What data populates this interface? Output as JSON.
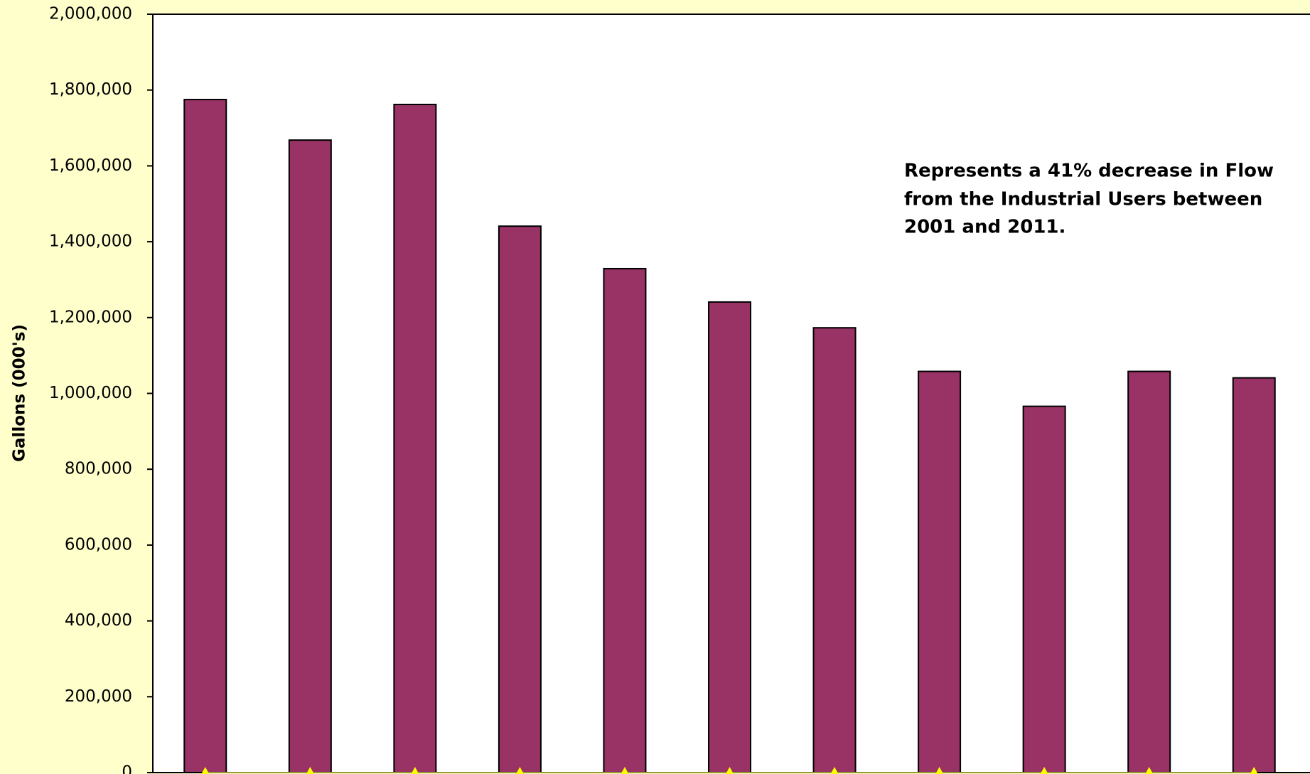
{
  "chart_data": {
    "type": "bar",
    "ylabel": "Gallons (000's)",
    "annotation": [
      "Represents a 41% decrease in Flow",
      "from the Industrial Users between",
      "2001 and 2011."
    ],
    "categories": [
      null,
      null,
      null,
      null,
      null,
      null,
      null,
      null,
      null,
      null,
      null
    ],
    "series": [
      {
        "color": "#993366",
        "values": [
          1775000,
          1668000,
          1762000,
          1441000,
          1329000,
          1241000,
          1173000,
          1058000,
          966000,
          1058000,
          1041000
        ]
      },
      {
        "color": "#ffff00",
        "values": [
          0,
          0,
          0,
          0,
          0,
          0,
          0,
          0,
          0,
          0,
          0
        ]
      }
    ],
    "ylim": [
      0,
      2000000
    ],
    "yticks": [
      0,
      {
        "value": 200000,
        "label": "200,000"
      },
      {
        "value": 400000,
        "label": "400,000"
      },
      {
        "value": 600000,
        "label": "600,000"
      },
      {
        "value": 800000,
        "label": "800,000"
      },
      {
        "value": 1000000,
        "label": "1,000,000"
      },
      {
        "value": 1200000,
        "label": "1,200,000"
      },
      {
        "value": 1400000,
        "label": "1,400,000"
      },
      {
        "value": 1600000,
        "label": "1,600,000"
      },
      {
        "value": 1800000,
        "label": "1,800,000"
      },
      {
        "value": 2000000,
        "label": "2,000,000"
      }
    ],
    "grid": false
  }
}
